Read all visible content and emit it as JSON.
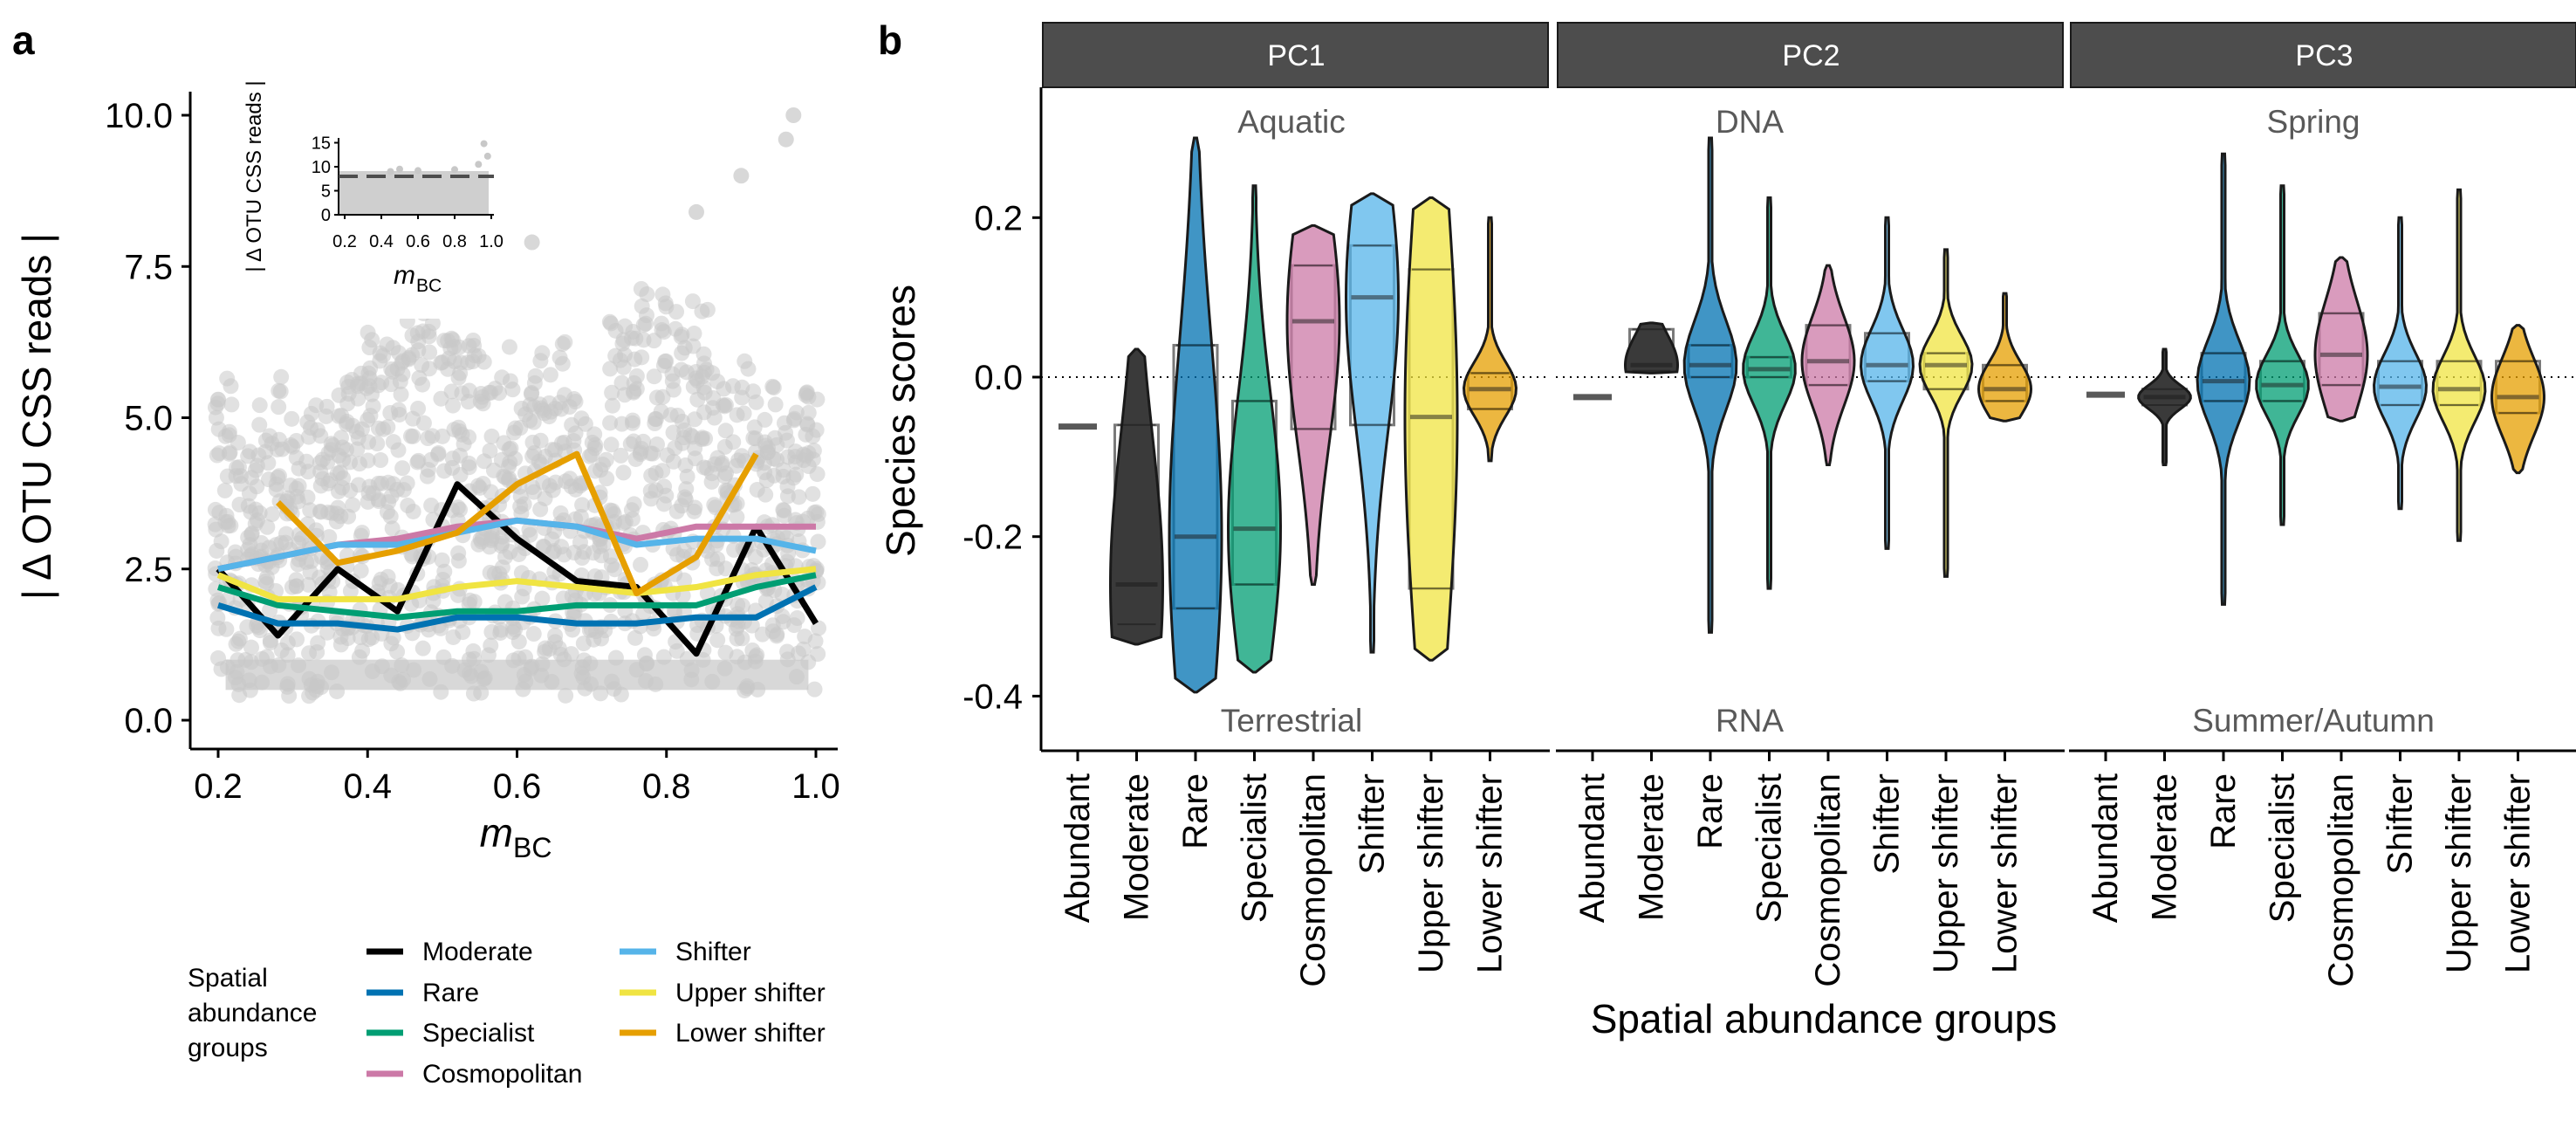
{
  "panel_labels": {
    "a": "a",
    "b": "b"
  },
  "colors": {
    "Abundant": "#595959",
    "Moderate": "#000000",
    "Rare": "#0072B2",
    "Specialist": "#009E73",
    "Cosmopolitan": "#CC79A7",
    "Shifter": "#56B4E9",
    "Upper shifter": "#F0E442",
    "Lower shifter": "#E69F00",
    "violin_Abundant": "#595959",
    "violin_Moderate": "#3a3a3a",
    "points": "#c8c8c8"
  },
  "panel_a": {
    "ylabel": "| Δ OTU CSS reads |",
    "xlabel_main": "m",
    "xlabel_sub": "BC",
    "inset": {
      "ylabel": "| Δ OTU CSS reads |",
      "xlabel_main": "m",
      "xlabel_sub": "BC",
      "yticks": [
        "0",
        "5",
        "10",
        "15"
      ],
      "xticks": [
        "0.2",
        "0.4",
        "0.6",
        "0.8",
        "1.0"
      ],
      "dashed_y": 8
    },
    "legend": {
      "title": [
        "Spatial",
        "abundance",
        "groups"
      ],
      "items": [
        "Moderate",
        "Rare",
        "Specialist",
        "Cosmopolitan",
        "Shifter",
        "Upper shifter",
        "Lower shifter"
      ]
    }
  },
  "panel_b": {
    "ylabel": "Species scores",
    "xlabel": "Spatial abundance groups",
    "facets": [
      "PC1",
      "PC2",
      "PC3"
    ],
    "top_annotations": [
      "Aquatic",
      "DNA",
      "Spring"
    ],
    "bottom_annotations": [
      "Terrestrial",
      "RNA",
      "Summer/Autumn"
    ]
  },
  "chart_data": [
    {
      "type": "line",
      "title": "",
      "xlabel": "mBC",
      "ylabel": "| Δ OTU CSS reads |",
      "xlim": [
        0.2,
        1.0
      ],
      "ylim": [
        0,
        10
      ],
      "xticks": [
        "0.2",
        "0.4",
        "0.6",
        "0.8",
        "1.0"
      ],
      "yticks": [
        "0.0",
        "2.5",
        "5.0",
        "7.5",
        "10.0"
      ],
      "grid": false,
      "legend_position": "bottom-left",
      "series": [
        {
          "name": "Moderate",
          "x": [
            0.2,
            0.28,
            0.36,
            0.44,
            0.52,
            0.6,
            0.68,
            0.76,
            0.84,
            0.92,
            1.0
          ],
          "y": [
            2.5,
            1.4,
            2.5,
            1.8,
            3.9,
            3.0,
            2.3,
            2.2,
            1.1,
            3.2,
            1.6
          ]
        },
        {
          "name": "Rare",
          "x": [
            0.2,
            0.28,
            0.36,
            0.44,
            0.52,
            0.6,
            0.68,
            0.76,
            0.84,
            0.92,
            1.0
          ],
          "y": [
            1.9,
            1.6,
            1.6,
            1.5,
            1.7,
            1.7,
            1.6,
            1.6,
            1.7,
            1.7,
            2.2
          ]
        },
        {
          "name": "Specialist",
          "x": [
            0.2,
            0.28,
            0.36,
            0.44,
            0.52,
            0.6,
            0.68,
            0.76,
            0.84,
            0.92,
            1.0
          ],
          "y": [
            2.2,
            1.9,
            1.8,
            1.7,
            1.8,
            1.8,
            1.9,
            1.9,
            1.9,
            2.2,
            2.4
          ]
        },
        {
          "name": "Cosmopolitan",
          "x": [
            0.2,
            0.28,
            0.36,
            0.44,
            0.52,
            0.6,
            0.68,
            0.76,
            0.84,
            0.92,
            1.0
          ],
          "y": [
            2.5,
            2.7,
            2.9,
            3.0,
            3.2,
            3.3,
            3.2,
            3.0,
            3.2,
            3.2,
            3.2
          ]
        },
        {
          "name": "Shifter",
          "x": [
            0.2,
            0.28,
            0.36,
            0.44,
            0.52,
            0.6,
            0.68,
            0.76,
            0.84,
            0.92,
            1.0
          ],
          "y": [
            2.5,
            2.7,
            2.9,
            2.9,
            3.1,
            3.3,
            3.2,
            2.9,
            3.0,
            3.0,
            2.8
          ]
        },
        {
          "name": "Upper shifter",
          "x": [
            0.2,
            0.28,
            0.36,
            0.44,
            0.52,
            0.6,
            0.68,
            0.76,
            0.84,
            0.92,
            1.0
          ],
          "y": [
            2.4,
            2.0,
            2.0,
            2.0,
            2.2,
            2.3,
            2.2,
            2.1,
            2.2,
            2.4,
            2.5
          ]
        },
        {
          "name": "Lower shifter",
          "x": [
            0.28,
            0.36,
            0.44,
            0.52,
            0.6,
            0.68,
            0.76,
            0.84,
            0.92
          ],
          "y": [
            3.6,
            2.6,
            2.8,
            3.1,
            3.9,
            4.4,
            2.1,
            2.7,
            4.4
          ]
        }
      ]
    },
    {
      "type": "violin",
      "title": "",
      "xlabel": "Spatial abundance groups",
      "ylabel": "Species scores",
      "ylim": [
        -0.43,
        0.32
      ],
      "yticks": [
        "0.2",
        "0.0",
        "-0.2",
        "-0.4"
      ],
      "yticks_values": [
        0.2,
        0.0,
        -0.2,
        -0.4
      ],
      "categories": [
        "Abundant",
        "Moderate",
        "Rare",
        "Specialist",
        "Cosmopolitan",
        "Shifter",
        "Upper shifter",
        "Lower shifter"
      ],
      "facets": [
        {
          "name": "PC1",
          "groups": [
            {
              "name": "Abundant",
              "min": -0.062,
              "max": -0.062,
              "q1": -0.062,
              "median": -0.062,
              "q3": -0.062,
              "box": [
                -0.062,
                -0.062
              ]
            },
            {
              "name": "Moderate",
              "min": -0.335,
              "max": 0.035,
              "q1": -0.31,
              "median": -0.26,
              "q3": -0.06,
              "box": [
                -0.31,
                -0.06
              ]
            },
            {
              "name": "Rare",
              "min": -0.395,
              "max": 0.3,
              "q1": -0.29,
              "median": -0.2,
              "q3": 0.04,
              "box": [
                -0.29,
                0.04
              ]
            },
            {
              "name": "Specialist",
              "min": -0.37,
              "max": 0.24,
              "q1": -0.26,
              "median": -0.19,
              "q3": -0.03,
              "box": [
                -0.26,
                -0.03
              ]
            },
            {
              "name": "Cosmopolitan",
              "min": -0.26,
              "max": 0.19,
              "q1": -0.065,
              "median": 0.07,
              "q3": 0.14,
              "box": [
                -0.065,
                0.14
              ]
            },
            {
              "name": "Shifter",
              "min": -0.345,
              "max": 0.23,
              "q1": -0.06,
              "median": 0.1,
              "q3": 0.165,
              "box": [
                -0.06,
                0.165
              ]
            },
            {
              "name": "Upper shifter",
              "min": -0.355,
              "max": 0.225,
              "q1": -0.265,
              "median": -0.05,
              "q3": 0.135,
              "box": [
                -0.265,
                0.135
              ]
            },
            {
              "name": "Lower shifter",
              "min": -0.105,
              "max": 0.2,
              "q1": -0.04,
              "median": -0.015,
              "q3": 0.005,
              "box": [
                -0.04,
                0.005
              ]
            }
          ]
        },
        {
          "name": "PC2",
          "groups": [
            {
              "name": "Abundant",
              "min": -0.025,
              "max": -0.025,
              "q1": -0.025,
              "median": -0.025,
              "q3": -0.025,
              "box": [
                -0.025,
                -0.025
              ]
            },
            {
              "name": "Moderate",
              "min": 0.005,
              "max": 0.068,
              "q1": 0.008,
              "median": 0.015,
              "q3": 0.06,
              "box": [
                0.008,
                0.06
              ]
            },
            {
              "name": "Rare",
              "min": -0.32,
              "max": 0.3,
              "q1": 0.0,
              "median": 0.015,
              "q3": 0.04,
              "box": [
                0.0,
                0.04
              ]
            },
            {
              "name": "Specialist",
              "min": -0.265,
              "max": 0.225,
              "q1": 0.0,
              "median": 0.01,
              "q3": 0.025,
              "box": [
                0.0,
                0.025
              ]
            },
            {
              "name": "Cosmopolitan",
              "min": -0.11,
              "max": 0.14,
              "q1": -0.01,
              "median": 0.02,
              "q3": 0.065,
              "box": [
                -0.01,
                0.065
              ]
            },
            {
              "name": "Shifter",
              "min": -0.215,
              "max": 0.2,
              "q1": -0.005,
              "median": 0.015,
              "q3": 0.055,
              "box": [
                -0.005,
                0.055
              ]
            },
            {
              "name": "Upper shifter",
              "min": -0.25,
              "max": 0.16,
              "q1": -0.015,
              "median": 0.015,
              "q3": 0.03,
              "box": [
                -0.015,
                0.03
              ]
            },
            {
              "name": "Lower shifter",
              "min": -0.055,
              "max": 0.105,
              "q1": -0.03,
              "median": -0.015,
              "q3": 0.015,
              "box": [
                -0.03,
                0.015
              ]
            }
          ]
        },
        {
          "name": "PC3",
          "groups": [
            {
              "name": "Abundant",
              "min": -0.022,
              "max": -0.022,
              "q1": -0.022,
              "median": -0.022,
              "q3": -0.022,
              "box": [
                -0.022,
                -0.022
              ]
            },
            {
              "name": "Moderate",
              "min": -0.11,
              "max": 0.035,
              "q1": -0.035,
              "median": -0.025,
              "q3": -0.015,
              "box": [
                -0.035,
                -0.015
              ]
            },
            {
              "name": "Rare",
              "min": -0.285,
              "max": 0.28,
              "q1": -0.03,
              "median": -0.005,
              "q3": 0.03,
              "box": [
                -0.03,
                0.03
              ]
            },
            {
              "name": "Specialist",
              "min": -0.185,
              "max": 0.24,
              "q1": -0.03,
              "median": -0.01,
              "q3": 0.02,
              "box": [
                -0.03,
                0.02
              ]
            },
            {
              "name": "Cosmopolitan",
              "min": -0.055,
              "max": 0.15,
              "q1": -0.01,
              "median": 0.028,
              "q3": 0.08,
              "box": [
                -0.01,
                0.08
              ]
            },
            {
              "name": "Shifter",
              "min": -0.165,
              "max": 0.2,
              "q1": -0.035,
              "median": -0.012,
              "q3": 0.02,
              "box": [
                -0.035,
                0.02
              ]
            },
            {
              "name": "Upper shifter",
              "min": -0.205,
              "max": 0.235,
              "q1": -0.035,
              "median": -0.015,
              "q3": 0.02,
              "box": [
                -0.035,
                0.02
              ]
            },
            {
              "name": "Lower shifter",
              "min": -0.12,
              "max": 0.065,
              "q1": -0.045,
              "median": -0.025,
              "q3": 0.02,
              "box": [
                -0.045,
                0.02
              ]
            }
          ]
        }
      ]
    }
  ]
}
